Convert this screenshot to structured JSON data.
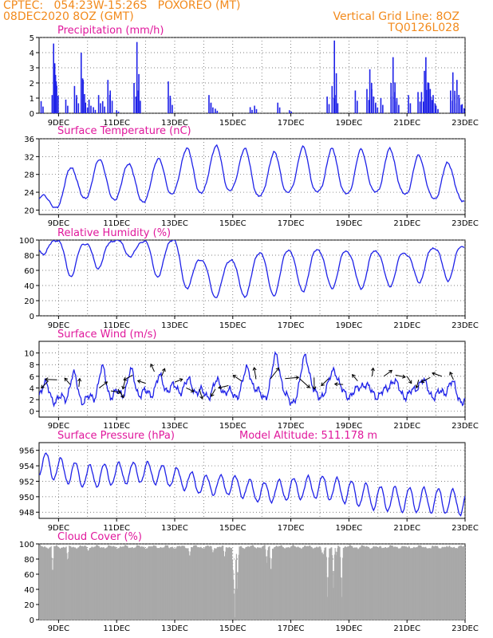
{
  "header": {
    "line1_left": "CPTEC:   054:23W-15:26S   POXOREO (MT)",
    "line2_left": "08DEC2020 8OZ (GMT)",
    "line2_right": "Vertical Grid Line: 8OZ",
    "line3_right": "TQ0126L028"
  },
  "colors": {
    "header": "#f28a1c",
    "panel_title": "#e0189c",
    "series": "#1f22e8",
    "cloud": "#a9a9a9",
    "arrow": "#000000"
  },
  "x_ticks": [
    "9DEC",
    "11DEC",
    "13DEC",
    "15DEC",
    "17DEC",
    "19DEC",
    "21DEC",
    "23DEC"
  ],
  "chart_data": [
    {
      "type": "bar",
      "title": "Precipitation (mm/h)",
      "ylim": [
        0,
        5
      ],
      "yticks": [
        0,
        1,
        2,
        3,
        4,
        5
      ],
      "x_start_day": 8.33,
      "spikes": [
        [
          8.4,
          0.8
        ],
        [
          8.78,
          1.2
        ],
        [
          8.83,
          4.6
        ],
        [
          8.87,
          3.3
        ],
        [
          8.92,
          2.1
        ],
        [
          9.25,
          0.9
        ],
        [
          9.55,
          1.8
        ],
        [
          9.62,
          1.2
        ],
        [
          9.78,
          4.0
        ],
        [
          9.83,
          2.3
        ],
        [
          9.93,
          0.7
        ],
        [
          10.05,
          0.9
        ],
        [
          10.2,
          0.4
        ],
        [
          10.38,
          1.2
        ],
        [
          10.52,
          0.8
        ],
        [
          10.7,
          2.2
        ],
        [
          10.78,
          1.5
        ],
        [
          11.0,
          0.2
        ],
        [
          11.6,
          2.0
        ],
        [
          11.7,
          4.7
        ],
        [
          11.75,
          1.5
        ],
        [
          12.78,
          2.1
        ],
        [
          12.85,
          1.0
        ],
        [
          14.18,
          1.2
        ],
        [
          14.25,
          0.7
        ],
        [
          14.4,
          0.3
        ],
        [
          15.6,
          0.4
        ],
        [
          15.75,
          0.5
        ],
        [
          16.55,
          0.7
        ],
        [
          16.95,
          0.2
        ],
        [
          18.25,
          1.1
        ],
        [
          18.42,
          1.8
        ],
        [
          18.5,
          4.8
        ],
        [
          18.55,
          1.2
        ],
        [
          19.22,
          1.5
        ],
        [
          19.62,
          1.6
        ],
        [
          19.72,
          2.9
        ],
        [
          19.78,
          2.0
        ],
        [
          19.85,
          1.1
        ],
        [
          19.92,
          0.7
        ],
        [
          20.1,
          1.0
        ],
        [
          20.45,
          2.0
        ],
        [
          20.52,
          3.7
        ],
        [
          20.58,
          1.4
        ],
        [
          20.65,
          1.0
        ],
        [
          21.05,
          1.2
        ],
        [
          21.38,
          1.4
        ],
        [
          21.5,
          1.4
        ],
        [
          21.6,
          2.8
        ],
        [
          21.65,
          3.7
        ],
        [
          21.75,
          2.0
        ],
        [
          21.8,
          1.6
        ],
        [
          21.9,
          1.2
        ],
        [
          22.0,
          0.5
        ],
        [
          22.5,
          1.5
        ],
        [
          22.58,
          2.7
        ],
        [
          22.65,
          1.2
        ],
        [
          22.72,
          2.2
        ],
        [
          22.8,
          1.0
        ],
        [
          22.9,
          0.6
        ]
      ]
    },
    {
      "type": "line",
      "title": "Surface Temperature (nC)",
      "ylim": [
        19,
        36
      ],
      "yticks": [
        20,
        24,
        28,
        32,
        36
      ],
      "diurnal": {
        "base": 20.5,
        "amp": 6.5,
        "phase_hour": 18,
        "width": 0.42
      },
      "daily_max": [
        20,
        28,
        32,
        31,
        30,
        34,
        34,
        35,
        32,
        34,
        34,
        33,
        34,
        33,
        31,
        30,
        30
      ]
    },
    {
      "type": "line",
      "title": "Relative Humidity (%)",
      "ylim": [
        0,
        100
      ],
      "yticks": [
        0,
        20,
        40,
        60,
        80,
        100
      ],
      "daily_min": [
        100,
        60,
        42,
        96,
        55,
        45,
        22,
        24,
        23,
        28,
        35,
        36,
        35,
        44,
        45,
        50,
        80
      ],
      "daily_max": [
        100,
        100,
        95,
        100,
        98,
        100,
        70,
        72,
        82,
        85,
        86,
        84,
        85,
        82,
        90,
        92,
        95
      ]
    },
    {
      "type": "line",
      "title": "Surface Wind (m/s)",
      "ylim": [
        -1,
        12
      ],
      "yticks": [
        0,
        2,
        4,
        6,
        8,
        10
      ],
      "daily_peak": [
        4,
        5,
        7,
        7,
        6,
        5,
        5,
        5,
        10,
        10,
        10,
        5,
        5,
        6,
        5,
        5,
        5
      ],
      "daily_base": [
        3,
        2,
        2,
        3,
        3,
        4,
        3,
        3,
        3,
        2,
        3,
        3,
        3,
        3,
        3,
        2,
        2
      ],
      "arrows": [
        [
          8.65,
          5.2,
          3
        ],
        [
          8.95,
          5.4,
          4
        ],
        [
          9.4,
          4.6,
          2
        ],
        [
          9.7,
          4.2,
          2
        ],
        [
          10.4,
          4.0,
          3
        ],
        [
          10.8,
          3.5,
          3
        ],
        [
          11.05,
          3.8,
          3
        ],
        [
          11.3,
          5.5,
          3
        ],
        [
          11.55,
          6.2,
          3
        ],
        [
          12.0,
          4.8,
          2
        ],
        [
          12.3,
          6.8,
          2
        ],
        [
          12.55,
          6.0,
          2
        ],
        [
          13.0,
          5.0,
          2
        ],
        [
          13.4,
          4.0,
          2
        ],
        [
          13.85,
          3.8,
          3
        ],
        [
          14.4,
          3.8,
          2
        ],
        [
          14.85,
          4.4,
          3
        ],
        [
          15.3,
          5.2,
          3
        ],
        [
          15.8,
          5.5,
          4
        ],
        [
          16.3,
          5.6,
          5
        ],
        [
          16.8,
          5.6,
          5
        ],
        [
          17.3,
          5.6,
          5
        ],
        [
          17.8,
          5.8,
          4
        ],
        [
          18.3,
          5.6,
          3
        ],
        [
          18.8,
          4.6,
          2
        ],
        [
          19.3,
          5.2,
          2
        ],
        [
          19.8,
          6.0,
          2
        ],
        [
          20.2,
          6.0,
          3
        ],
        [
          20.6,
          6.2,
          3
        ],
        [
          21.0,
          6.0,
          2
        ],
        [
          21.4,
          5.4,
          2
        ],
        [
          21.8,
          5.8,
          3
        ],
        [
          22.2,
          6.0,
          3
        ],
        [
          22.6,
          5.4,
          2
        ],
        [
          23.0,
          5.2,
          2
        ]
      ]
    },
    {
      "type": "line",
      "title": "Surface Pressure (hPa)",
      "title2": "Model Altitude: 511.178  m",
      "ylim": [
        947.2,
        957
      ],
      "yticks": [
        948,
        950,
        952,
        954,
        956
      ],
      "daily_mean": [
        955,
        953.5,
        952.6,
        953.0,
        953.2,
        952.5,
        951.5,
        951.5,
        950.5,
        951.0,
        951.3,
        950.6,
        949.8,
        949.6,
        949.5,
        949.2,
        949.0
      ],
      "amp": 1.6
    },
    {
      "type": "area",
      "title": "Cloud Cover (%)",
      "ylim": [
        0,
        100
      ],
      "yticks": [
        0,
        20,
        40,
        60,
        80,
        100
      ],
      "dips": [
        [
          8.78,
          58
        ],
        [
          9.3,
          75
        ],
        [
          10.0,
          90
        ],
        [
          10.55,
          97
        ],
        [
          11.0,
          97
        ],
        [
          12.8,
          94
        ],
        [
          13.5,
          82
        ],
        [
          14.3,
          87
        ],
        [
          14.7,
          80
        ],
        [
          15.0,
          58
        ],
        [
          15.05,
          3
        ],
        [
          15.15,
          40
        ],
        [
          16.15,
          75
        ],
        [
          16.3,
          60
        ],
        [
          18.05,
          88
        ],
        [
          18.1,
          84
        ],
        [
          18.25,
          30
        ],
        [
          18.45,
          42
        ],
        [
          18.55,
          85
        ],
        [
          18.73,
          30
        ],
        [
          19.3,
          93
        ],
        [
          20.0,
          94
        ],
        [
          21.0,
          94
        ],
        [
          21.8,
          93
        ],
        [
          22.4,
          95
        ]
      ]
    }
  ]
}
